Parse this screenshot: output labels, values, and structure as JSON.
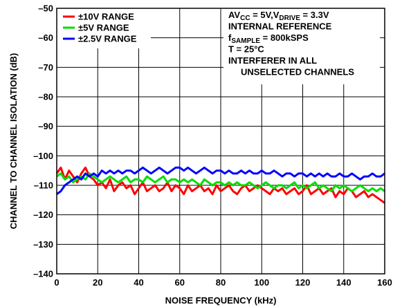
{
  "chart_data": {
    "type": "line",
    "title": "",
    "xlabel": "NOISE FREQUENCY (kHz)",
    "ylabel": "CHANNEL TO CHANNEL ISOLATION (dB)",
    "xlim": [
      0,
      160
    ],
    "ylim": [
      -140,
      -50
    ],
    "x_ticks": [
      0,
      20,
      40,
      60,
      80,
      100,
      120,
      140,
      160
    ],
    "y_ticks": [
      -50,
      -60,
      -70,
      -80,
      -90,
      -100,
      -110,
      -120,
      -130,
      -140
    ],
    "x_tick_labels": [
      "0",
      "20",
      "40",
      "60",
      "80",
      "100",
      "120",
      "140",
      "160"
    ],
    "y_tick_labels": [
      "–50",
      "–60",
      "–70",
      "–80",
      "–90",
      "–100",
      "–110",
      "–120",
      "–130",
      "–140"
    ],
    "grid": true,
    "legend_position": "top-left",
    "series": [
      {
        "name": "±10V RANGE",
        "color": "#ff0000",
        "x": [
          0,
          2,
          4,
          6,
          8,
          10,
          12,
          14,
          16,
          18,
          20,
          22,
          24,
          26,
          28,
          30,
          32,
          34,
          36,
          38,
          40,
          42,
          44,
          46,
          48,
          50,
          52,
          54,
          56,
          58,
          60,
          62,
          64,
          66,
          68,
          70,
          72,
          74,
          76,
          78,
          80,
          82,
          84,
          86,
          88,
          90,
          92,
          94,
          96,
          98,
          100,
          102,
          104,
          106,
          108,
          110,
          112,
          114,
          116,
          118,
          120,
          122,
          124,
          126,
          128,
          130,
          132,
          134,
          136,
          138,
          140,
          142,
          144,
          146,
          148,
          150,
          152,
          154,
          156,
          158,
          160
        ],
        "y": [
          -106,
          -104,
          -108,
          -105,
          -107,
          -109,
          -106,
          -104,
          -107,
          -108,
          -110,
          -109,
          -111,
          -108,
          -112,
          -110,
          -109,
          -111,
          -110,
          -113,
          -111,
          -109,
          -112,
          -111,
          -110,
          -112,
          -111,
          -109,
          -112,
          -110,
          -111,
          -113,
          -110,
          -112,
          -111,
          -110,
          -112,
          -111,
          -113,
          -110,
          -112,
          -111,
          -110,
          -112,
          -113,
          -111,
          -110,
          -112,
          -111,
          -110,
          -111,
          -112,
          -113,
          -111,
          -112,
          -111,
          -113,
          -112,
          -111,
          -113,
          -112,
          -110,
          -113,
          -112,
          -111,
          -113,
          -112,
          -111,
          -114,
          -112,
          -113,
          -111,
          -112,
          -114,
          -113,
          -112,
          -114,
          -113,
          -114,
          -115,
          -116
        ]
      },
      {
        "name": "±5V RANGE",
        "color": "#00dd00",
        "x": [
          0,
          2,
          4,
          6,
          8,
          10,
          12,
          14,
          16,
          18,
          20,
          22,
          24,
          26,
          28,
          30,
          32,
          34,
          36,
          38,
          40,
          42,
          44,
          46,
          48,
          50,
          52,
          54,
          56,
          58,
          60,
          62,
          64,
          66,
          68,
          70,
          72,
          74,
          76,
          78,
          80,
          82,
          84,
          86,
          88,
          90,
          92,
          94,
          96,
          98,
          100,
          102,
          104,
          106,
          108,
          110,
          112,
          114,
          116,
          118,
          120,
          122,
          124,
          126,
          128,
          130,
          132,
          134,
          136,
          138,
          140,
          142,
          144,
          146,
          148,
          150,
          152,
          154,
          156,
          158,
          160
        ],
        "y": [
          -107,
          -106,
          -108,
          -107,
          -109,
          -108,
          -107,
          -108,
          -106,
          -107,
          -108,
          -109,
          -108,
          -107,
          -108,
          -109,
          -108,
          -107,
          -109,
          -108,
          -108,
          -109,
          -107,
          -108,
          -109,
          -108,
          -107,
          -109,
          -108,
          -108,
          -109,
          -108,
          -109,
          -108,
          -109,
          -110,
          -108,
          -109,
          -110,
          -109,
          -109,
          -110,
          -109,
          -110,
          -109,
          -110,
          -110,
          -109,
          -110,
          -111,
          -110,
          -109,
          -110,
          -111,
          -110,
          -110,
          -111,
          -110,
          -109,
          -111,
          -110,
          -111,
          -110,
          -109,
          -111,
          -110,
          -111,
          -112,
          -110,
          -111,
          -110,
          -111,
          -112,
          -111,
          -110,
          -111,
          -112,
          -111,
          -112,
          -111,
          -112
        ]
      },
      {
        "name": "±2.5V RANGE",
        "color": "#0000ff",
        "x": [
          0,
          2,
          4,
          6,
          8,
          10,
          12,
          14,
          16,
          18,
          20,
          22,
          24,
          26,
          28,
          30,
          32,
          34,
          36,
          38,
          40,
          42,
          44,
          46,
          48,
          50,
          52,
          54,
          56,
          58,
          60,
          62,
          64,
          66,
          68,
          70,
          72,
          74,
          76,
          78,
          80,
          82,
          84,
          86,
          88,
          90,
          92,
          94,
          96,
          98,
          100,
          102,
          104,
          106,
          108,
          110,
          112,
          114,
          116,
          118,
          120,
          122,
          124,
          126,
          128,
          130,
          132,
          134,
          136,
          138,
          140,
          142,
          144,
          146,
          148,
          150,
          152,
          154,
          156,
          158,
          160
        ],
        "y": [
          -113,
          -112,
          -110,
          -109,
          -108,
          -107,
          -108,
          -106,
          -107,
          -106,
          -107,
          -105,
          -106,
          -105,
          -106,
          -105,
          -106,
          -105,
          -105,
          -106,
          -105,
          -104,
          -105,
          -106,
          -105,
          -104,
          -105,
          -106,
          -105,
          -104,
          -104,
          -105,
          -104,
          -105,
          -106,
          -105,
          -104,
          -105,
          -106,
          -105,
          -105,
          -106,
          -105,
          -106,
          -106,
          -105,
          -106,
          -105,
          -106,
          -106,
          -105,
          -106,
          -106,
          -105,
          -106,
          -107,
          -106,
          -106,
          -107,
          -106,
          -106,
          -107,
          -106,
          -107,
          -106,
          -107,
          -106,
          -107,
          -107,
          -106,
          -107,
          -107,
          -106,
          -107,
          -108,
          -107,
          -107,
          -106,
          -107,
          -107,
          -106
        ]
      }
    ],
    "annotation": [
      {
        "parts": [
          {
            "t": "AV"
          },
          {
            "t": "CC",
            "sub": true
          },
          {
            "t": " = 5V,V"
          },
          {
            "t": "DRIVE",
            "sub": true
          },
          {
            "t": " = 3.3V"
          }
        ]
      },
      {
        "parts": [
          {
            "t": "INTERNAL REFERENCE"
          }
        ]
      },
      {
        "parts": [
          {
            "t": "f"
          },
          {
            "t": "SAMPLE",
            "sub": true
          },
          {
            "t": " = 800kSPS"
          }
        ]
      },
      {
        "parts": [
          {
            "t": "T = 25°C"
          }
        ]
      },
      {
        "parts": [
          {
            "t": "INTERFERER IN ALL"
          }
        ]
      },
      {
        "parts": [
          {
            "t": "UNSELECTED CHANNELS"
          }
        ]
      }
    ]
  }
}
